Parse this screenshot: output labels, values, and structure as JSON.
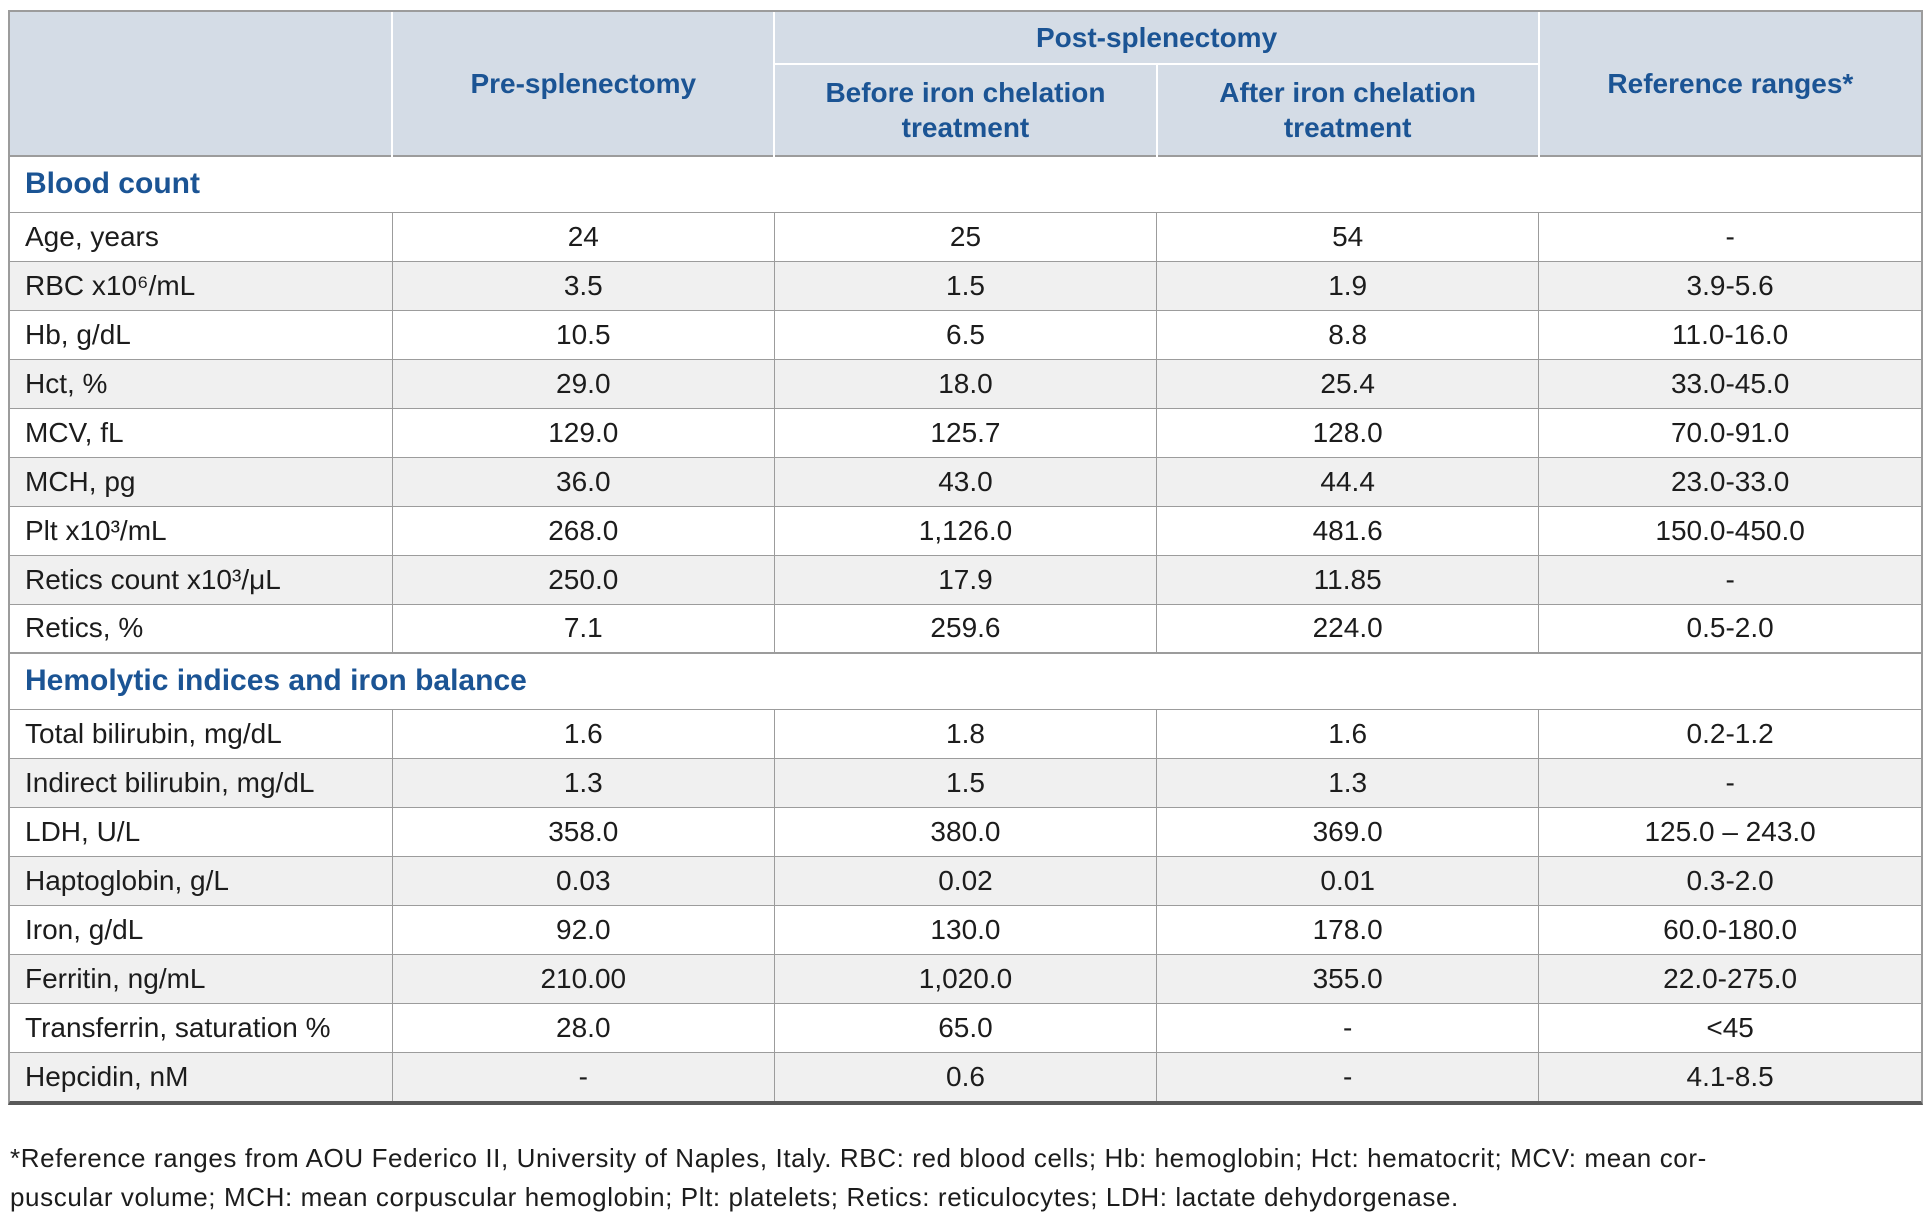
{
  "colors": {
    "accent_blue": "#1b5494",
    "header_bg": "#d4dce6",
    "stripe_gray": "#f0f0f0",
    "grid_gray": "#9c9c9c",
    "text_dark": "#1c1c1c",
    "bottom_border": "#595959"
  },
  "table": {
    "header": {
      "corner": "",
      "pre": "Pre-splenectomy",
      "post": "Post-splenectomy",
      "before": "Before iron chelation treatment",
      "after": "After iron chelation treatment",
      "reference": "Reference ranges*"
    },
    "sections": [
      {
        "title": "Blood count",
        "rows": [
          {
            "label": "Age, years",
            "pre": "24",
            "before": "25",
            "after": "54",
            "ref": "-"
          },
          {
            "label": "RBC x10⁶/mL",
            "pre": "3.5",
            "before": "1.5",
            "after": "1.9",
            "ref": "3.9-5.6"
          },
          {
            "label": "Hb, g/dL",
            "pre": "10.5",
            "before": "6.5",
            "after": "8.8",
            "ref": "11.0-16.0"
          },
          {
            "label": "Hct, %",
            "pre": "29.0",
            "before": "18.0",
            "after": "25.4",
            "ref": "33.0-45.0"
          },
          {
            "label": "MCV, fL",
            "pre": "129.0",
            "before": "125.7",
            "after": "128.0",
            "ref": "70.0-91.0"
          },
          {
            "label": "MCH, pg",
            "pre": "36.0",
            "before": "43.0",
            "after": "44.4",
            "ref": "23.0-33.0"
          },
          {
            "label": "Plt x10³/mL",
            "pre": "268.0",
            "before": "1,126.0",
            "after": "481.6",
            "ref": "150.0-450.0"
          },
          {
            "label": "Retics count x10³/μL",
            "pre": "250.0",
            "before": "17.9",
            "after": "11.85",
            "ref": "-"
          },
          {
            "label": "Retics, %",
            "pre": "7.1",
            "before": "259.6",
            "after": "224.0",
            "ref": "0.5-2.0"
          }
        ]
      },
      {
        "title": "Hemolytic indices and iron balance",
        "rows": [
          {
            "label": "Total bilirubin, mg/dL",
            "pre": "1.6",
            "before": "1.8",
            "after": "1.6",
            "ref": "0.2-1.2"
          },
          {
            "label": "Indirect bilirubin, mg/dL",
            "pre": "1.3",
            "before": "1.5",
            "after": "1.3",
            "ref": "-"
          },
          {
            "label": "LDH, U/L",
            "pre": "358.0",
            "before": "380.0",
            "after": "369.0",
            "ref": "125.0 – 243.0"
          },
          {
            "label": "Haptoglobin, g/L",
            "pre": "0.03",
            "before": "0.02",
            "after": "0.01",
            "ref": "0.3-2.0"
          },
          {
            "label": "Iron, g/dL",
            "pre": "92.0",
            "before": "130.0",
            "after": "178.0",
            "ref": "60.0-180.0"
          },
          {
            "label": "Ferritin, ng/mL",
            "pre": "210.00",
            "before": "1,020.0",
            "after": "355.0",
            "ref": "22.0-275.0"
          },
          {
            "label": "Transferrin, saturation %",
            "pre": "28.0",
            "before": "65.0",
            "after": "-",
            "ref": "<45"
          },
          {
            "label": "Hepcidin, nM",
            "pre": "-",
            "before": "0.6",
            "after": "-",
            "ref": "4.1-8.5"
          }
        ]
      }
    ]
  },
  "footnote": {
    "line1": "*Reference ranges from AOU Federico II, University of Naples, Italy. RBC: red blood cells; Hb: hemoglobin; Hct: hematocrit; MCV: mean cor-",
    "line2": "puscular volume; MCH: mean corpuscular hemoglobin; Plt: platelets; Retics: reticulocytes; LDH: lactate dehydorgenase."
  }
}
